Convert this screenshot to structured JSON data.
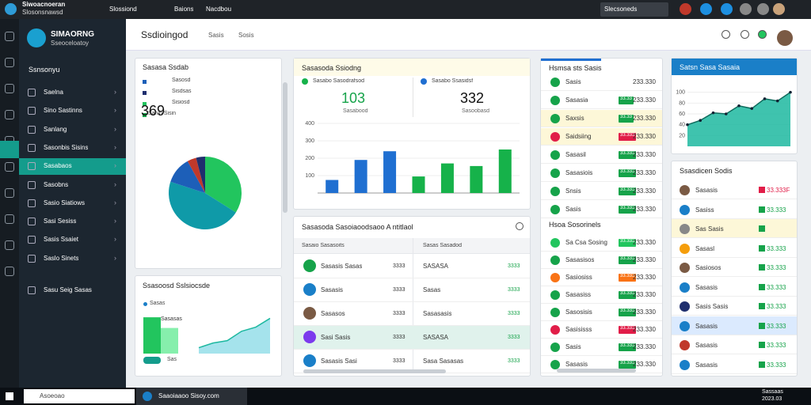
{
  "header": {
    "app_title": "Siwoacnoeran",
    "app_subtitle": "Slosonsnawsd",
    "window": "Slossiond",
    "tabs": [
      "Baions",
      "Nacdbou"
    ],
    "search": "Slecsoneds"
  },
  "sidebar": {
    "brand": "SIMAORNG",
    "brand_sub": "Sseoceloatoy",
    "section": "Ssnsonyu",
    "items": [
      "Saelna",
      "Sino Sastinns",
      "Sanlang",
      "Sasonbis Sisins",
      "Sasabaos",
      "Sasobns",
      "Sasio Siatiows",
      "Sasi Sesiss",
      "Sasis Ssaiet",
      "Saslo Sinets",
      "Sasu Seig Sasas"
    ],
    "active": 4
  },
  "page": {
    "title": "Ssdioingod",
    "tabs": [
      "Sasis",
      "Sosis"
    ]
  },
  "pie_panel": {
    "title": "Sasasa Ssdab",
    "legend": [
      "Sasosd",
      "Sisdsas",
      "Sisiosd",
      "Sanin Sisin"
    ],
    "big_value": "369",
    "chart": {
      "type": "pie",
      "values": [
        34,
        46,
        12,
        4,
        4
      ],
      "colors": [
        "#22c55e",
        "#0f9aa8",
        "#1d5fb8",
        "#c0392b",
        "#1f2f6e"
      ]
    }
  },
  "bar_panel": {
    "title": "Sasasoda Ssiodng",
    "stats": [
      {
        "label": "Sasabo Sasodrafsod",
        "value": "103",
        "sub": "Sasabood"
      },
      {
        "label": "Sasabo Ssasidsf",
        "value": "332",
        "sub": "Sasoobasd"
      }
    ],
    "chart": {
      "type": "bar",
      "categories": [
        null,
        null,
        null,
        null,
        null,
        null,
        null
      ],
      "ylim": [
        0,
        400
      ],
      "yticks": [
        100,
        200,
        300,
        400
      ],
      "series": [
        {
          "color": "#1f6fd1",
          "values": [
            75,
            190,
            240,
            null,
            null,
            null,
            null
          ]
        },
        {
          "color": "#16b24a",
          "values": [
            null,
            null,
            null,
            95,
            170,
            155,
            250
          ]
        }
      ]
    }
  },
  "list_a": {
    "title": "Hsmsa sts Sasis",
    "rows": [
      [
        "Sasis",
        "",
        "233.330",
        "#16a34a"
      ],
      [
        "Sasasia",
        "33.33",
        "233.330",
        "#16a34a"
      ],
      [
        "Saxsis",
        "33.33",
        "233.330",
        "#16a34a"
      ],
      [
        "Saidsiing",
        "33.333",
        "233.330",
        "#e11d48"
      ],
      [
        "Sasasil",
        "33.333",
        "233.330",
        "#16a34a"
      ],
      [
        "Sasasiois",
        "33.333",
        "233.330",
        "#16a34a"
      ],
      [
        "Snsis",
        "33.333",
        "233.330",
        "#16a34a"
      ],
      [
        "Sasis",
        "33.333",
        "233.330",
        "#16a34a"
      ]
    ],
    "section": "Hsoa Sosorinels",
    "rows2": [
      [
        "Sa Csa Sosing",
        "33.333",
        "233.330",
        "#22c55e"
      ],
      [
        "Sasasisos",
        "33.333",
        "233.330",
        "#16a34a"
      ],
      [
        "Sasiosiss",
        "33.333",
        "233.330",
        "#f97316"
      ],
      [
        "Sasasiss",
        "33.333",
        "233.330",
        "#16a34a"
      ],
      [
        "Sasosisis",
        "33.333",
        "233.330",
        "#16a34a"
      ],
      [
        "Sasisisss",
        "33.333",
        "233.330",
        "#e11d48"
      ],
      [
        "Sasis",
        "33.333",
        "233.330",
        "#16a34a"
      ],
      [
        "Sasasis",
        "33.333",
        "233.330",
        "#16a34a"
      ]
    ]
  },
  "line_panel": {
    "title": "Satsn Sasa Sasaia",
    "chart": {
      "type": "area",
      "x": [
        0,
        1,
        2,
        3,
        4,
        5,
        6,
        7,
        8
      ],
      "values": [
        40,
        48,
        62,
        60,
        75,
        70,
        88,
        84,
        100
      ],
      "xlim": [
        0,
        8
      ],
      "ylim": [
        0,
        120
      ],
      "yticks": [
        20,
        40,
        60,
        80,
        100
      ],
      "color": "#1db8a0"
    }
  },
  "list_b": {
    "title": "Ssasdicen Sodis",
    "rows": [
      [
        "Sasasis",
        "33.333F",
        "#e11d48"
      ],
      [
        "Sasiss",
        "33.333",
        "#16a34a"
      ],
      [
        "Sas Sasis",
        "",
        "#16a34a"
      ],
      [
        "Sasasl",
        "33.333",
        "#16a34a"
      ],
      [
        "Sasiosos",
        "33.333",
        "#16a34a"
      ],
      [
        "Sasasis",
        "33.333",
        "#16a34a"
      ],
      [
        "Sasis Sasis",
        "33.333",
        "#16a34a"
      ],
      [
        "Sasasis",
        "33.333",
        "#16a34a"
      ],
      [
        "Sasasis",
        "33.333",
        "#16a34a"
      ],
      [
        "Sasasis",
        "33.333",
        "#16a34a"
      ]
    ]
  },
  "table": {
    "title": "Sasasoda Sasoiaoodsaoo A ntitlaol",
    "columns": [
      "Sasaio Sasasoits",
      "Sasas Sasadod"
    ],
    "rows": [
      [
        "Sasasis Sasas",
        "3333",
        "SASASA",
        "3333"
      ],
      [
        "Sasasis",
        "3333",
        "Sasas",
        "3333"
      ],
      [
        "Sasasos",
        "3333",
        "Sasasasis",
        "3333"
      ],
      [
        "Sasi Sasis",
        "3333",
        "SASASA",
        "3333"
      ],
      [
        "Sasasis Sasi",
        "3333",
        "Sasa Sasasas",
        "3333"
      ]
    ]
  },
  "small_panel": {
    "title": "Ssasoosd Sslsiocsde",
    "legend": "Sasas",
    "bar_label": "Sasasas",
    "badge": "Sas",
    "chart": {
      "type": "line",
      "x": [
        0,
        1,
        2,
        3,
        4,
        5
      ],
      "values": [
        10,
        18,
        22,
        38,
        45,
        60
      ],
      "xlim": [
        0,
        5
      ],
      "ylim": [
        0,
        70
      ],
      "color": "#1db8a0"
    },
    "bars": {
      "type": "bar",
      "values": [
        85,
        60
      ],
      "ylim": [
        0,
        100
      ],
      "colors": [
        "#22c55e",
        "#86efac"
      ]
    }
  },
  "taskbar": {
    "search": "Asoeoao",
    "window": "Saaoiaaoo Sisoy.com",
    "time": "Sassaas",
    "date": "2023.03"
  }
}
